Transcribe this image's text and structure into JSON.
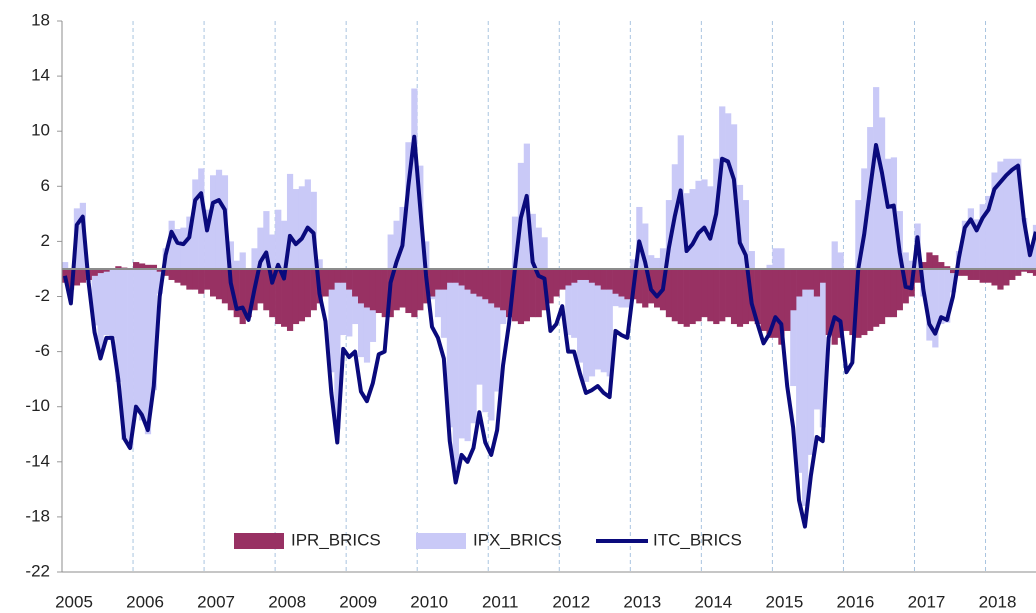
{
  "chart_data": {
    "type": "bar_line",
    "categories": [
      "2005",
      null,
      null,
      null,
      null,
      null,
      null,
      null,
      null,
      null,
      null,
      null,
      "2006",
      null,
      null,
      null,
      null,
      null,
      null,
      null,
      null,
      null,
      null,
      null,
      "2007",
      null,
      null,
      null,
      null,
      null,
      null,
      null,
      null,
      null,
      null,
      null,
      "2008",
      null,
      null,
      null,
      null,
      null,
      null,
      null,
      null,
      null,
      null,
      null,
      "2009",
      null,
      null,
      null,
      null,
      null,
      null,
      null,
      null,
      null,
      null,
      null,
      "2010",
      null,
      null,
      null,
      null,
      null,
      null,
      null,
      null,
      null,
      null,
      null,
      "2011",
      null,
      null,
      null,
      null,
      null,
      null,
      null,
      null,
      null,
      null,
      null,
      "2012",
      null,
      null,
      null,
      null,
      null,
      null,
      null,
      null,
      null,
      null,
      null,
      "2013",
      null,
      null,
      null,
      null,
      null,
      null,
      null,
      null,
      null,
      null,
      null,
      "2014",
      null,
      null,
      null,
      null,
      null,
      null,
      null,
      null,
      null,
      null,
      null,
      "2015",
      null,
      null,
      null,
      null,
      null,
      null,
      null,
      null,
      null,
      null,
      null,
      "2016",
      null,
      null,
      null,
      null,
      null,
      null,
      null,
      null,
      null,
      null,
      null,
      "2017",
      null,
      null,
      null,
      null,
      null,
      null,
      null,
      null,
      null,
      null,
      null,
      "2018",
      null,
      null,
      null,
      null,
      null,
      null,
      null,
      null
    ],
    "series": [
      {
        "name": "IPR_BRICS",
        "kind": "bar",
        "color": "#983163",
        "values": [
          -1,
          -1.5,
          -1.2,
          -1,
          -0.8,
          -0.5,
          -0.3,
          -0.2,
          0,
          0.2,
          0.1,
          0,
          0.5,
          0.4,
          0.3,
          0.3,
          -0.2,
          -0.5,
          -0.8,
          -1,
          -1.2,
          -1.5,
          -1.5,
          -1.8,
          -1.5,
          -2,
          -2.2,
          -2.5,
          -3,
          -3.5,
          -4,
          -3.5,
          -3,
          -2.5,
          -3,
          -3.5,
          -4,
          -4.2,
          -4.5,
          -4,
          -3.8,
          -3.5,
          -3,
          -2.5,
          -2,
          -1.5,
          -1,
          -1,
          -1.5,
          -2,
          -2.5,
          -2.8,
          -3,
          -3.2,
          -3.5,
          -3.5,
          -3,
          -2.8,
          -3.2,
          -3.5,
          -3,
          -2.5,
          -2,
          -1.5,
          -1.5,
          -1,
          -1,
          -1.2,
          -1.5,
          -1.8,
          -2,
          -2.2,
          -2.5,
          -2.8,
          -3,
          -3.5,
          -3.8,
          -4,
          -3.8,
          -3.5,
          -3.5,
          -3,
          -2.5,
          -2,
          -1.5,
          -1.2,
          -1,
          -0.8,
          -0.8,
          -1,
          -1.2,
          -1.5,
          -1.5,
          -1.8,
          -2,
          -2.2,
          -2.2,
          -2.5,
          -2.8,
          -2.5,
          -2.8,
          -3,
          -3.5,
          -3.8,
          -4,
          -4.2,
          -4,
          -3.8,
          -3.5,
          -3.8,
          -4,
          -3.8,
          -3.5,
          -4,
          -4.2,
          -4,
          -3.8,
          -4,
          -4.5,
          -5,
          -5,
          -5.5,
          -4.5,
          -3,
          -2,
          -1.5,
          -1.5,
          -2,
          -1,
          -4.8,
          -5.5,
          -5,
          -4.5,
          -4.8,
          -5,
          -4.8,
          -4.5,
          -4.2,
          -4,
          -3.5,
          -3.5,
          -3,
          -2.5,
          -2,
          -1,
          0.5,
          1.2,
          1,
          0.5,
          0.2,
          -0.3,
          -0.5,
          -0.5,
          -0.8,
          -0.8,
          -1,
          -1,
          -1.2,
          -1.5,
          -1.2,
          -0.8,
          -0.5,
          -0.2,
          -0.3,
          -0.5
        ]
      },
      {
        "name": "IPX_BRICS",
        "kind": "bar",
        "color": "#c9c9f7",
        "values": [
          0.5,
          -1,
          4.4,
          4.8,
          -0.2,
          -4.1,
          -6.2,
          -4.8,
          -5,
          -8.2,
          -12.4,
          -13,
          -10.5,
          -11,
          -12,
          -8.8,
          -1.8,
          1.5,
          3.5,
          2.9,
          3,
          3.8,
          6.5,
          7.3,
          4.3,
          6.8,
          7.2,
          6.8,
          2,
          0.6,
          1.2,
          -0.2,
          1.5,
          3,
          4.2,
          2.5,
          4.3,
          3.5,
          6.9,
          5.8,
          6,
          6.5,
          5.6,
          0.7,
          -1.8,
          -7.5,
          -11.6,
          -4.8,
          -4.9,
          -4,
          -6.4,
          -6.8,
          -5.3,
          -3,
          -2.5,
          2.5,
          3.5,
          4.5,
          9.2,
          13.1,
          7.5,
          2,
          -2.2,
          -3.5,
          -5,
          -11.5,
          -14.5,
          -12.3,
          -12.5,
          -11.2,
          -8.4,
          -10.4,
          -11,
          -8.9,
          -4,
          -0.5,
          3.8,
          7.7,
          9.1,
          4,
          3,
          2.3,
          -2,
          -2,
          -1.2,
          -4.8,
          -5,
          -6.8,
          -8.2,
          -7.8,
          -7.3,
          -7.5,
          -7.8,
          -2.7,
          -2.8,
          -2.8,
          0.7,
          4.5,
          3.3,
          1,
          0.8,
          1.5,
          5,
          7.6,
          9.7,
          5.5,
          5.8,
          6.4,
          6.5,
          6,
          8,
          11.8,
          11.3,
          10.5,
          6.1,
          5,
          1.3,
          0,
          -0.9,
          0.3,
          1.5,
          1.5,
          -4,
          -8.5,
          -14.8,
          -17.2,
          -13.5,
          -10.2,
          -11.5,
          -0.2,
          2,
          1.2,
          -3,
          -2,
          5,
          7.3,
          10.3,
          13.2,
          11,
          8,
          8.1,
          4.2,
          1.2,
          0.6,
          3.3,
          -2,
          -5.2,
          -5.7,
          -4,
          -3.9,
          -1.7,
          1.3,
          3.5,
          4.4,
          3.6,
          4.7,
          5.3,
          7,
          7.8,
          8,
          8,
          8,
          3.7,
          1.3,
          3.2
        ]
      },
      {
        "name": "ITC_BRICS",
        "kind": "line",
        "color": "#0a0a7c",
        "values": [
          -0.5,
          -2.5,
          3.2,
          3.8,
          -1,
          -4.6,
          -6.5,
          -5,
          -5,
          -8,
          -12.3,
          -13,
          -10,
          -10.6,
          -11.7,
          -8.5,
          -2,
          1,
          2.7,
          1.9,
          1.8,
          2.3,
          5,
          5.5,
          2.8,
          4.8,
          5,
          4.3,
          -1,
          -2.9,
          -2.8,
          -3.7,
          -1.5,
          0.5,
          1.2,
          -1,
          0.3,
          -0.7,
          2.4,
          1.8,
          2.2,
          3,
          2.6,
          -1.8,
          -3.8,
          -9,
          -12.6,
          -5.8,
          -6.4,
          -6,
          -8.9,
          -9.6,
          -8.3,
          -6.2,
          -6,
          -1,
          0.5,
          1.7,
          6,
          9.6,
          4.5,
          -0.5,
          -4.2,
          -5,
          -6.5,
          -12.5,
          -15.5,
          -13.5,
          -14,
          -13,
          -10.4,
          -12.6,
          -13.5,
          -11.7,
          -7,
          -4,
          0,
          3.7,
          5.3,
          0.5,
          -0.5,
          -0.7,
          -4.5,
          -4,
          -2.7,
          -6,
          -6,
          -7.6,
          -9,
          -8.8,
          -8.5,
          -9,
          -9.3,
          -4.5,
          -4.8,
          -5,
          -1.5,
          2,
          0.5,
          -1.5,
          -2,
          -1.5,
          1.5,
          3.8,
          5.7,
          1.3,
          1.8,
          2.6,
          3,
          2.2,
          4,
          8,
          7.8,
          6.5,
          1.9,
          1,
          -2.5,
          -4,
          -5.4,
          -4.7,
          -3.5,
          -4,
          -8.5,
          -11.5,
          -16.8,
          -18.7,
          -15,
          -12.2,
          -12.5,
          -5,
          -3.5,
          -3.8,
          -7.5,
          -6.8,
          0,
          2.5,
          5.8,
          9,
          7,
          4.5,
          4.6,
          1.2,
          -1.3,
          -1.4,
          2.3,
          -1.5,
          -4,
          -4.7,
          -3.5,
          -3.7,
          -2,
          0.8,
          3,
          3.6,
          2.8,
          3.7,
          4.3,
          5.8,
          6.3,
          6.8,
          7.2,
          7.5,
          3.5,
          1,
          2.7
        ]
      }
    ],
    "ylim": [
      -22,
      18
    ],
    "yticks": [
      -22,
      -18,
      -14,
      -10,
      -6,
      -2,
      2,
      6,
      10,
      14,
      18
    ],
    "grid": false,
    "legend": "bottom"
  }
}
